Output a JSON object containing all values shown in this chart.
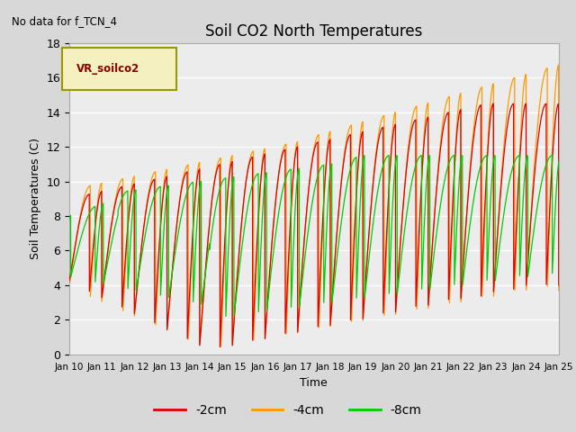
{
  "title": "Soil CO2 North Temperatures",
  "xlabel": "Time",
  "ylabel": "Soil Temperatures (C)",
  "no_data_text": "No data for f_TCN_4",
  "legend_label": "VR_soilco2",
  "ylim": [
    0,
    18
  ],
  "x_tick_labels": [
    "Jan 10",
    "Jan 11",
    "Jan 12",
    "Jan 13",
    "Jan 14",
    "Jan 15",
    "Jan 16",
    "Jan 17",
    "Jan 18",
    "Jan 19",
    "Jan 20",
    "Jan 21",
    "Jan 22",
    "Jan 23",
    "Jan 24",
    "Jan 25"
  ],
  "color_2cm": "#dd0000",
  "color_4cm": "#ff9900",
  "color_8cm": "#00cc00",
  "bg_color": "#d8d8d8",
  "plot_bg_color": "#ececec",
  "legend_colors": [
    "#dd0000",
    "#ff9900",
    "#00cc00"
  ],
  "legend_labels": [
    "-2cm",
    "-4cm",
    "-8cm"
  ],
  "figsize": [
    6.4,
    4.8
  ],
  "dpi": 100
}
